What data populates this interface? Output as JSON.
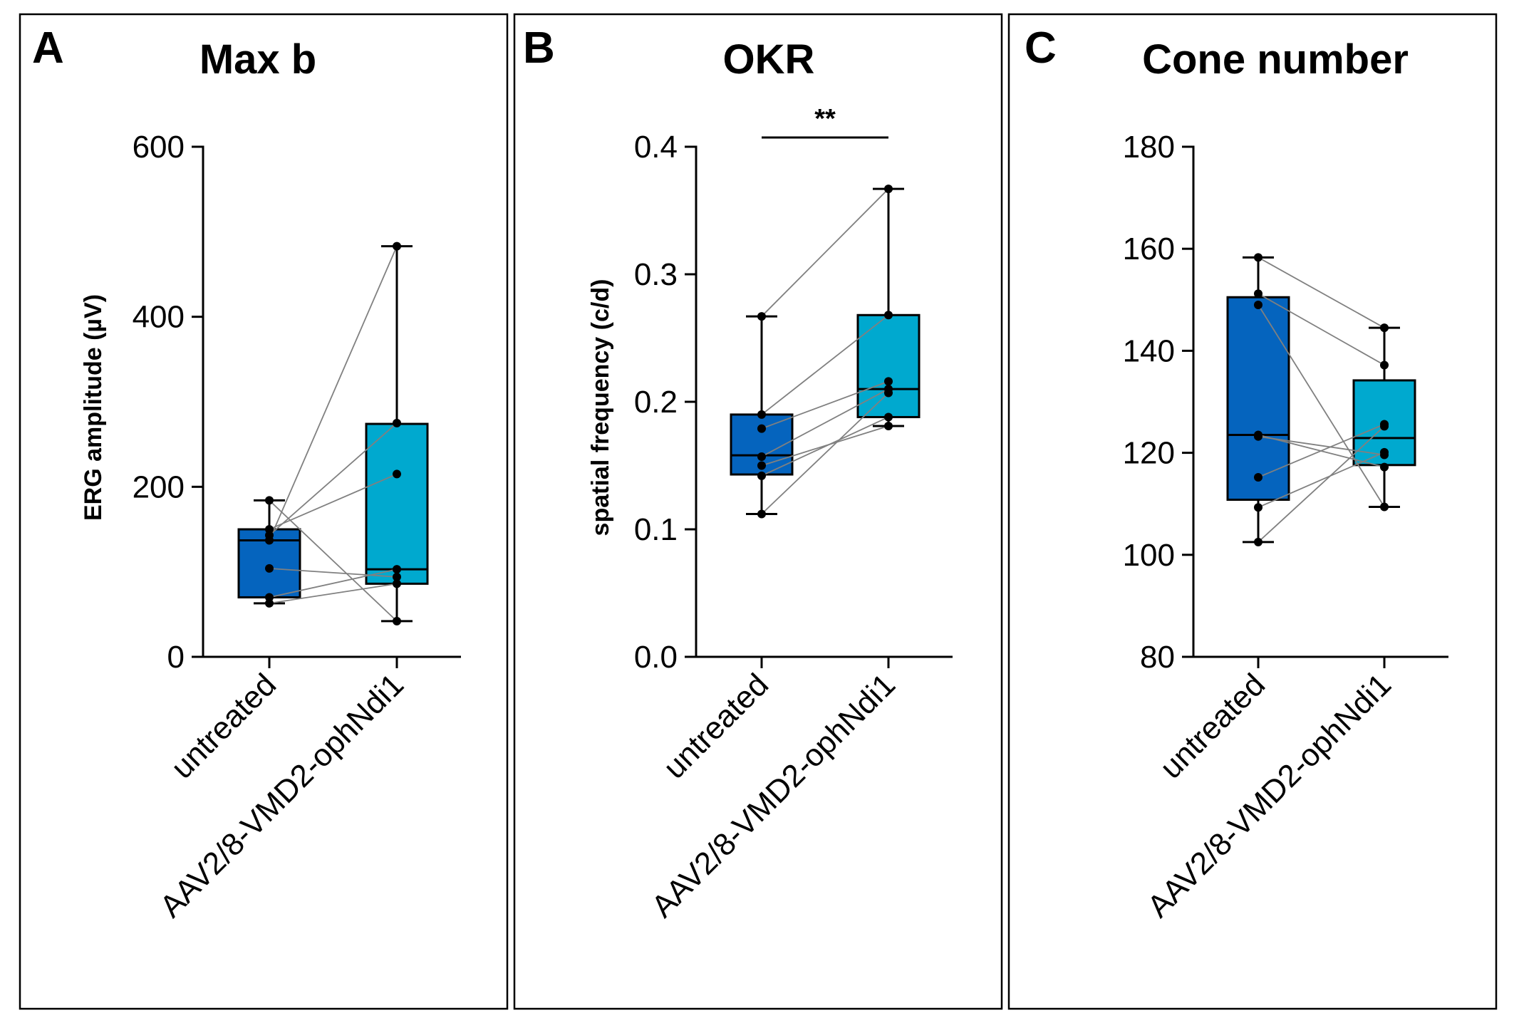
{
  "figure": {
    "colors": {
      "untreated": "#0564BE",
      "treated": "#00A9CF",
      "stroke": "#000000",
      "pair_line": "#808080"
    }
  },
  "chart_data": [
    {
      "type": "box",
      "panel_letter": "A",
      "title": "Max b",
      "xlabel": "",
      "ylabel": "ERG amplitude (µV)",
      "ylim": [
        0,
        600
      ],
      "yticks": [
        0,
        200,
        400,
        600
      ],
      "ytick_labels": [
        "0",
        "200",
        "400",
        "600"
      ],
      "categories": [
        "untreated",
        "AAV2/8-VMD2-ophNdi1"
      ],
      "boxes": [
        {
          "name": "untreated",
          "min": 63,
          "q1": 70,
          "median": 137,
          "q3": 150,
          "max": 184
        },
        {
          "name": "AAV2/8-VMD2-ophNdi1",
          "min": 42,
          "q1": 86,
          "median": 103,
          "q3": 274,
          "max": 483
        }
      ],
      "pairs": [
        [
          184,
          42
        ],
        [
          150,
          215
        ],
        [
          143,
          275
        ],
        [
          137,
          483
        ],
        [
          104,
          94
        ],
        [
          70,
          103
        ],
        [
          63,
          86
        ]
      ],
      "significance": null
    },
    {
      "type": "box",
      "panel_letter": "B",
      "title": "OKR",
      "xlabel": "",
      "ylabel": "spatial frequency (c/d)",
      "ylim": [
        0,
        0.4
      ],
      "yticks": [
        0,
        0.1,
        0.2,
        0.3,
        0.4
      ],
      "ytick_labels": [
        "0.0",
        "0.1",
        "0.2",
        "0.3",
        "0.4"
      ],
      "categories": [
        "untreated",
        "AAV2/8-VMD2-ophNdi1"
      ],
      "boxes": [
        {
          "name": "untreated",
          "min": 0.112,
          "q1": 0.143,
          "median": 0.158,
          "q3": 0.19,
          "max": 0.267
        },
        {
          "name": "AAV2/8-VMD2-ophNdi1",
          "min": 0.181,
          "q1": 0.188,
          "median": 0.21,
          "q3": 0.268,
          "max": 0.367
        }
      ],
      "pairs": [
        [
          0.267,
          0.367
        ],
        [
          0.19,
          0.268
        ],
        [
          0.179,
          0.216
        ],
        [
          0.157,
          0.21
        ],
        [
          0.15,
          0.181
        ],
        [
          0.142,
          0.188
        ],
        [
          0.112,
          0.207
        ]
      ],
      "significance": {
        "label": "**"
      }
    },
    {
      "type": "box",
      "panel_letter": "C",
      "title": "Cone number",
      "xlabel": "",
      "ylabel": "",
      "ylim": [
        80,
        180
      ],
      "yticks": [
        80,
        100,
        120,
        140,
        160,
        180
      ],
      "ytick_labels": [
        "80",
        "100",
        "120",
        "140",
        "160",
        "180"
      ],
      "categories": [
        "untreated",
        "AAV2/8-VMD2-ophNdi1"
      ],
      "boxes": [
        {
          "name": "untreated",
          "min": 102.5,
          "q1": 110.8,
          "median": 123.5,
          "q3": 150.5,
          "max": 158.3
        },
        {
          "name": "AAV2/8-VMD2-ophNdi1",
          "min": 109.4,
          "q1": 117.6,
          "median": 122.9,
          "q3": 134.2,
          "max": 144.5
        }
      ],
      "pairs": [
        [
          158.3,
          144.5
        ],
        [
          151.2,
          137.2
        ],
        [
          149,
          109.4
        ],
        [
          123.5,
          117.2
        ],
        [
          123.2,
          119.6
        ],
        [
          115.2,
          125.6
        ],
        [
          109.3,
          120.1
        ],
        [
          102.5,
          125.2
        ]
      ],
      "significance": null
    }
  ]
}
